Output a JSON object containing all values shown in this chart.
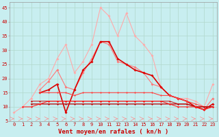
{
  "xlabel": "Vent moyen/en rafales ( kn/h )",
  "bg_color": "#c8eef0",
  "grid_color": "#b0d8cc",
  "ylim": [
    5,
    47
  ],
  "xlim": [
    -0.5,
    23.5
  ],
  "yticks": [
    5,
    10,
    15,
    20,
    25,
    30,
    35,
    40,
    45
  ],
  "xticks": [
    0,
    1,
    2,
    3,
    4,
    5,
    6,
    7,
    8,
    9,
    10,
    11,
    12,
    13,
    14,
    15,
    16,
    17,
    18,
    19,
    20,
    21,
    22,
    23
  ],
  "series": [
    {
      "color": "#ffaaaa",
      "lw": 0.8,
      "ms": 2.0,
      "data": [
        8,
        10,
        13,
        18,
        20,
        27,
        32,
        22,
        26,
        32,
        45,
        42,
        35,
        43,
        35,
        32,
        28,
        17,
        14,
        13,
        13,
        12,
        10,
        18
      ]
    },
    {
      "color": "#ff7777",
      "lw": 0.8,
      "ms": 2.0,
      "data": [
        null,
        null,
        null,
        16,
        19,
        23,
        17,
        16,
        22,
        27,
        33,
        32,
        26,
        25,
        24,
        22,
        18,
        17,
        14,
        13,
        12,
        10,
        9,
        13
      ]
    },
    {
      "color": "#dd0000",
      "lw": 1.2,
      "ms": 2.0,
      "data": [
        null,
        null,
        null,
        15,
        16,
        18,
        8,
        16,
        23,
        26,
        33,
        33,
        27,
        25,
        23,
        22,
        21,
        17,
        14,
        13,
        12,
        10,
        9,
        11
      ]
    },
    {
      "color": "#ff4444",
      "lw": 0.8,
      "ms": 1.5,
      "data": [
        null,
        null,
        null,
        15,
        15,
        15,
        15,
        14,
        15,
        15,
        15,
        15,
        15,
        15,
        15,
        15,
        15,
        14,
        14,
        13,
        12,
        11,
        10,
        10
      ]
    },
    {
      "color": "#cc2222",
      "lw": 0.8,
      "ms": 1.5,
      "data": [
        null,
        null,
        12,
        12,
        12,
        12,
        12,
        12,
        12,
        12,
        12,
        12,
        12,
        12,
        12,
        12,
        12,
        12,
        12,
        11,
        11,
        10,
        10,
        10
      ]
    },
    {
      "color": "#bb1111",
      "lw": 1.0,
      "ms": 1.5,
      "data": [
        null,
        null,
        11,
        11,
        11,
        11,
        11,
        11,
        11,
        11,
        11,
        11,
        11,
        11,
        11,
        11,
        11,
        11,
        11,
        11,
        11,
        10,
        10,
        10
      ]
    },
    {
      "color": "#ff2222",
      "lw": 0.8,
      "ms": 1.5,
      "data": [
        null,
        10,
        10,
        11,
        12,
        12,
        12,
        12,
        12,
        12,
        12,
        12,
        12,
        12,
        12,
        12,
        12,
        12,
        11,
        10,
        10,
        10,
        9,
        10
      ]
    }
  ],
  "arrow_color": "#ff8888",
  "spine_color": "#999999",
  "tick_color": "#cc0000",
  "label_color": "#cc0000",
  "xlabel_fontsize": 6.5,
  "tick_fontsize": 5.0
}
